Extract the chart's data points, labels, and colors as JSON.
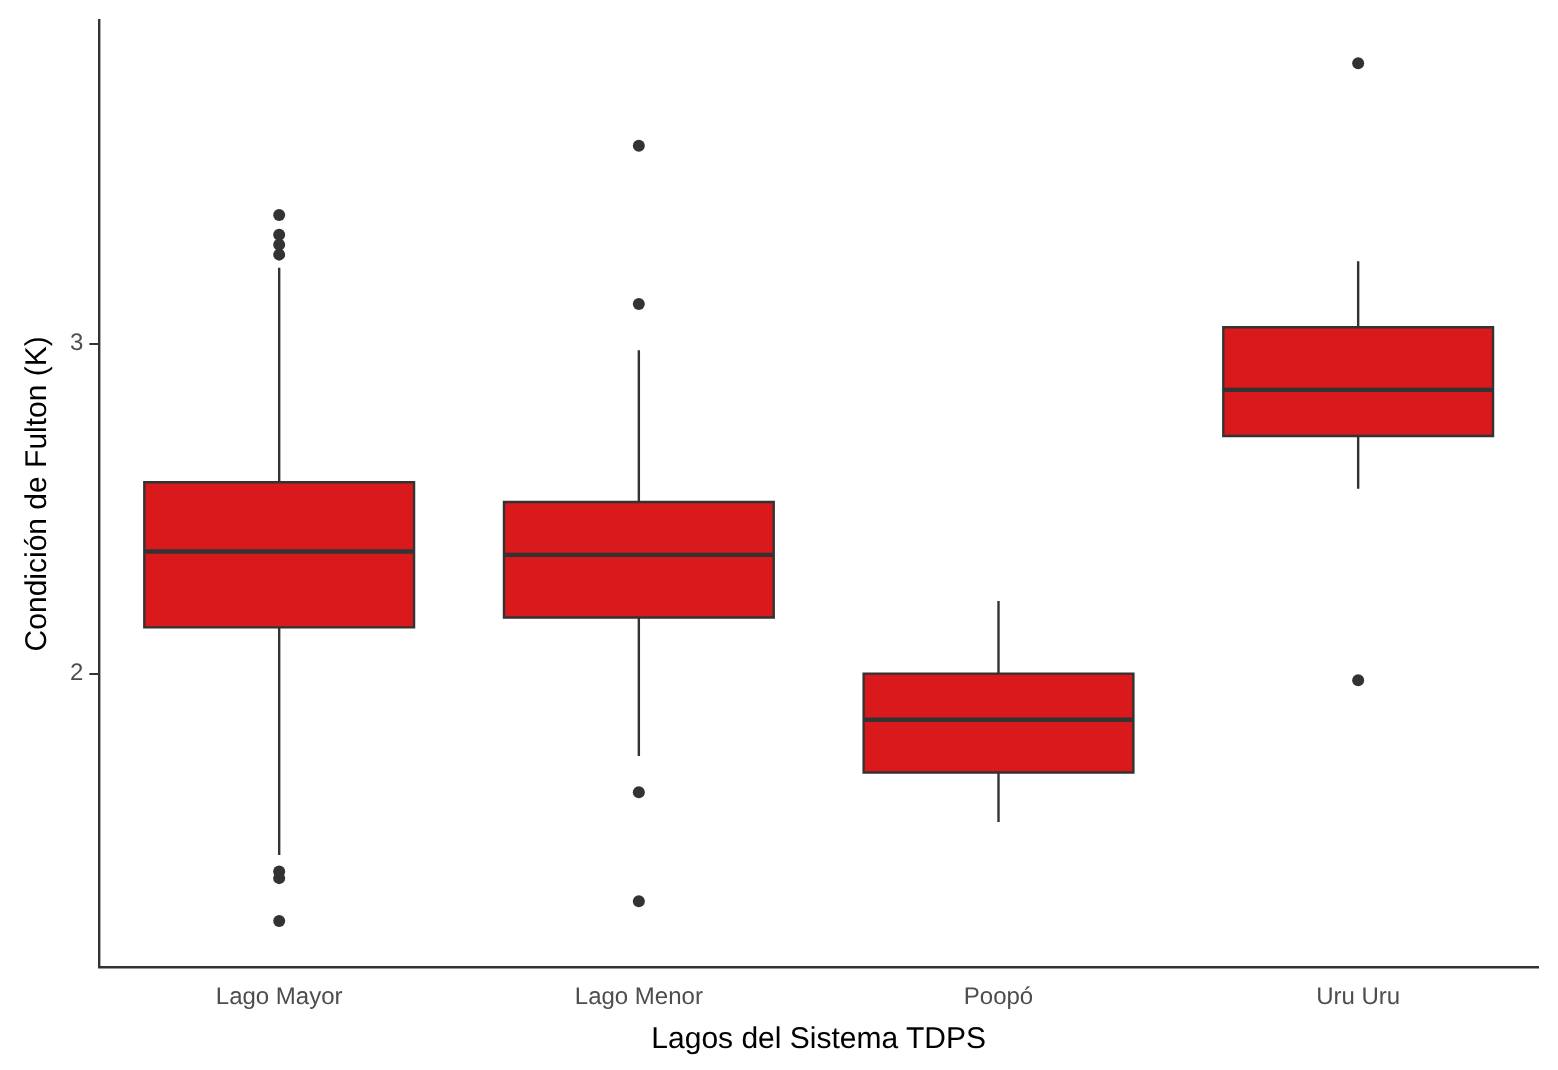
{
  "chart_data": {
    "type": "box",
    "xlabel": "Lagos del Sistema TDPS",
    "ylabel": "Condición de Fulton (K)",
    "categories": [
      "Lago Mayor",
      "Lago Menor",
      "Poopó",
      "Uru Uru"
    ],
    "color": "#d9191c",
    "boxes": [
      {
        "low": 1.45,
        "q1": 2.14,
        "median": 2.37,
        "q3": 2.58,
        "high": 3.23,
        "outliers": [
          3.39,
          3.33,
          3.3,
          3.27,
          1.4,
          1.38,
          1.25
        ]
      },
      {
        "low": 1.75,
        "q1": 2.17,
        "median": 2.36,
        "q3": 2.52,
        "high": 2.98,
        "outliers": [
          3.6,
          3.12,
          1.64,
          1.31
        ]
      },
      {
        "low": 1.55,
        "q1": 1.7,
        "median": 1.86,
        "q3": 2.0,
        "high": 2.22
      },
      {
        "low": 2.56,
        "q1": 2.72,
        "median": 2.86,
        "q3": 3.05,
        "high": 3.25,
        "outliers": [
          3.85,
          1.98
        ]
      }
    ],
    "ylim": [
      1.11,
      3.98
    ],
    "yticks": [
      2,
      3
    ]
  }
}
